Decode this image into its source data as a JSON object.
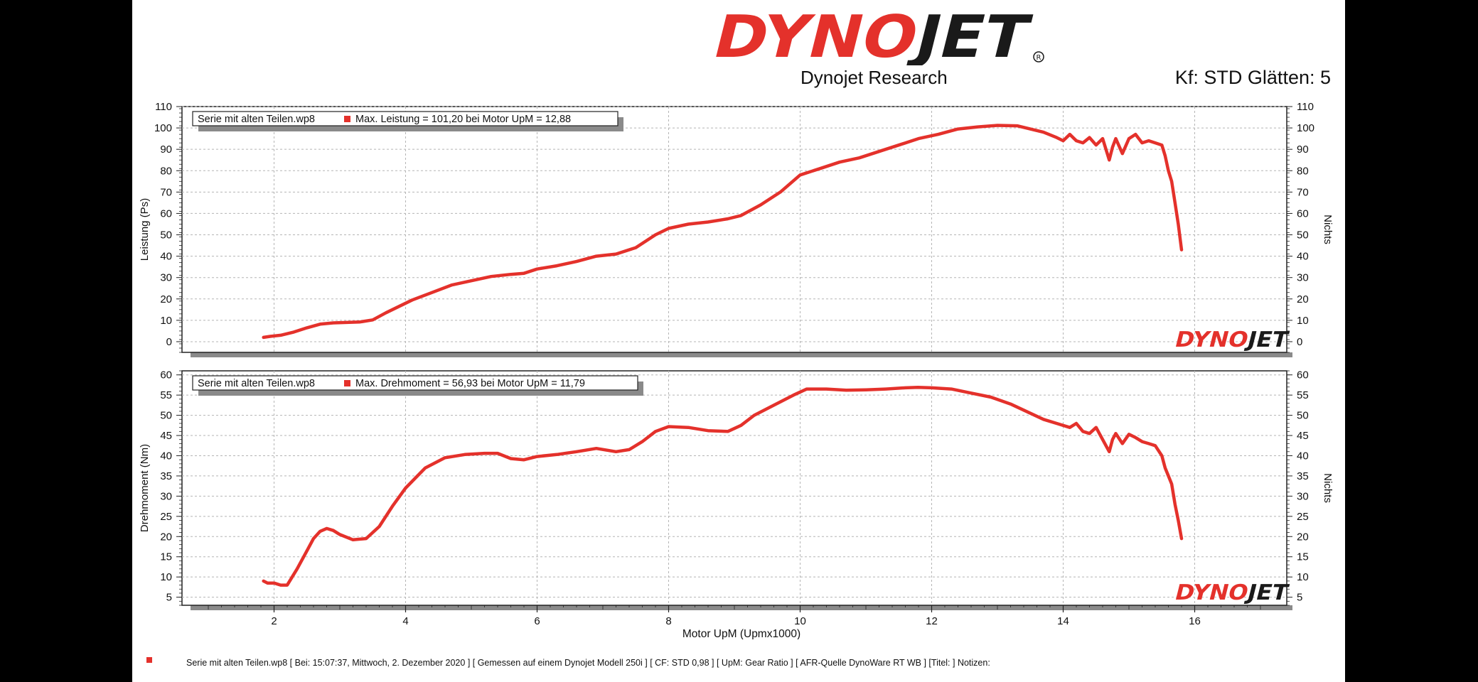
{
  "header": {
    "logo_text": "DYNOJET",
    "subtitle": "Dynojet Research",
    "kf_text": "Kf: STD Glätten: 5"
  },
  "footer": {
    "text": "Serie mit alten Teilen.wp8  [  Bei:  15:07:37,  Mittwoch,  2.  Dezember  2020  ]  [  Gemessen  auf  einem  Dynojet  Modell  250i  ]  [  CF:  STD 0,98  ]  [  UpM:  Gear  Ratio  ]  [  AFR-Quelle   DynoWare  RT  WB  ]  [Titel:  ]    Notizen:"
  },
  "colors": {
    "series": "#e4312b",
    "logo_red": "#e4312b",
    "logo_dark": "#1a1a1a"
  },
  "chart_data": [
    {
      "type": "line",
      "ylabel": "Leistung (Ps)",
      "ylabel_right": "Nichts",
      "ylim": [
        -5,
        110
      ],
      "yticks": [
        0,
        10,
        20,
        30,
        40,
        50,
        60,
        70,
        80,
        90,
        100,
        110
      ],
      "xlim": [
        0.6,
        17.4
      ],
      "grid": true,
      "watermark": "DYNOJET",
      "legend": "Serie mit alten Teilen.wp8",
      "legend_value": "Max. Leistung = 101,20 bei Motor UpM = 12,88",
      "series": [
        {
          "name": "Serie mit alten Teilen.wp8",
          "x": [
            1.84,
            1.95,
            2.1,
            2.3,
            2.5,
            2.7,
            2.9,
            3.1,
            3.3,
            3.5,
            3.7,
            3.9,
            4.1,
            4.4,
            4.7,
            5.0,
            5.3,
            5.6,
            5.8,
            6.0,
            6.3,
            6.6,
            6.9,
            7.2,
            7.5,
            7.8,
            8.0,
            8.3,
            8.6,
            8.9,
            9.1,
            9.4,
            9.7,
            10.0,
            10.3,
            10.6,
            10.9,
            11.2,
            11.5,
            11.8,
            12.1,
            12.4,
            12.7,
            13.0,
            13.3,
            13.5,
            13.7,
            13.9,
            14.0,
            14.1,
            14.2,
            14.3,
            14.4,
            14.5,
            14.6,
            14.7,
            14.75,
            14.8,
            14.9,
            15.0,
            15.1,
            15.2,
            15.3,
            15.4,
            15.5,
            15.55,
            15.6,
            15.65,
            15.7,
            15.75,
            15.8
          ],
          "values": [
            2,
            2.5,
            3,
            4.5,
            6.5,
            8.2,
            8.8,
            9,
            9.2,
            10.2,
            13.5,
            16.5,
            19.5,
            23,
            26.5,
            28.5,
            30.5,
            31.5,
            32,
            34,
            35.5,
            37.5,
            40,
            41,
            44,
            50,
            53,
            55,
            56,
            57.5,
            59,
            64,
            70,
            78,
            81,
            84,
            86,
            89,
            92,
            95,
            97,
            99.5,
            100.5,
            101.2,
            101,
            99.5,
            98,
            95.5,
            94,
            97,
            94,
            93,
            95.5,
            92,
            95,
            85,
            91,
            95,
            88,
            95,
            97,
            93,
            94,
            93,
            92,
            87,
            80,
            75,
            65,
            55,
            43
          ]
        }
      ]
    },
    {
      "type": "line",
      "ylabel": "Drehmoment (Nm)",
      "ylabel_right": "Nichts",
      "xlabel": "Motor UpM (Upmx1000)",
      "ylim": [
        3,
        61
      ],
      "yticks": [
        5,
        10,
        15,
        20,
        25,
        30,
        35,
        40,
        45,
        50,
        55,
        60
      ],
      "xlim": [
        0.6,
        17.4
      ],
      "xticks": [
        2,
        4,
        6,
        8,
        10,
        12,
        14,
        16
      ],
      "grid": true,
      "watermark": "DYNOJET",
      "legend": "Serie mit alten Teilen.wp8",
      "legend_value": "Max. Drehmoment = 56,93 bei Motor UpM = 11,79",
      "series": [
        {
          "name": "Serie mit alten Teilen.wp8",
          "x": [
            1.84,
            1.9,
            2.0,
            2.1,
            2.2,
            2.35,
            2.5,
            2.6,
            2.7,
            2.8,
            2.9,
            3.0,
            3.2,
            3.4,
            3.6,
            3.8,
            4.0,
            4.3,
            4.6,
            4.9,
            5.2,
            5.4,
            5.6,
            5.8,
            6.0,
            6.3,
            6.6,
            6.9,
            7.2,
            7.4,
            7.6,
            7.8,
            8.0,
            8.3,
            8.6,
            8.9,
            9.1,
            9.3,
            9.6,
            9.9,
            10.1,
            10.4,
            10.7,
            11.0,
            11.3,
            11.6,
            11.79,
            12.0,
            12.3,
            12.6,
            12.9,
            13.2,
            13.5,
            13.7,
            13.9,
            14.1,
            14.2,
            14.3,
            14.4,
            14.5,
            14.6,
            14.7,
            14.75,
            14.8,
            14.9,
            15.0,
            15.1,
            15.2,
            15.3,
            15.4,
            15.5,
            15.55,
            15.6,
            15.65,
            15.7,
            15.75,
            15.8
          ],
          "values": [
            9,
            8.5,
            8.5,
            8,
            8,
            12,
            16.5,
            19.5,
            21.3,
            22,
            21.5,
            20.5,
            19.2,
            19.5,
            22.5,
            27.5,
            32,
            37,
            39.5,
            40.3,
            40.6,
            40.6,
            39.3,
            39,
            39.8,
            40.3,
            41,
            41.8,
            41,
            41.5,
            43.5,
            46,
            47.2,
            47,
            46.2,
            46,
            47.5,
            50,
            52.5,
            55,
            56.5,
            56.5,
            56.2,
            56.3,
            56.5,
            56.8,
            56.93,
            56.8,
            56.5,
            55.5,
            54.5,
            52.8,
            50.5,
            49,
            48,
            47,
            48,
            46,
            45.5,
            47,
            44,
            41,
            44,
            45.5,
            43,
            45.3,
            44.5,
            43.5,
            43,
            42.5,
            40,
            37,
            35,
            33,
            28,
            24,
            19.5
          ]
        }
      ]
    }
  ]
}
